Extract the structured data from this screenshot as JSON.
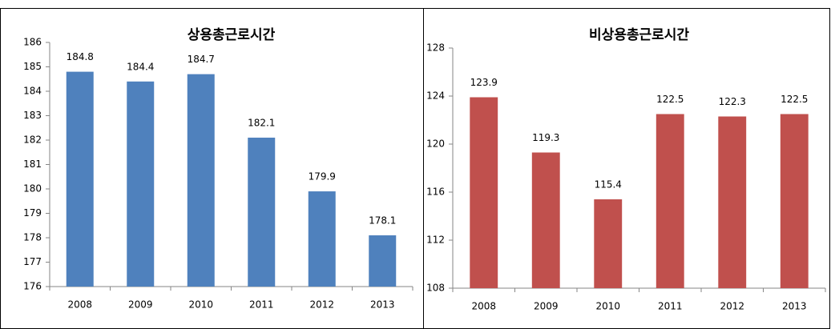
{
  "chart_data": [
    {
      "type": "bar",
      "title": "상용총근로시간",
      "categories": [
        "2008",
        "2009",
        "2010",
        "2011",
        "2012",
        "2013"
      ],
      "values": [
        184.8,
        184.4,
        184.7,
        182.1,
        179.9,
        178.1
      ],
      "color": "#4f81bd",
      "ylim": [
        176,
        186
      ],
      "yticks": [
        176,
        177,
        178,
        179,
        180,
        181,
        182,
        183,
        184,
        185,
        186
      ]
    },
    {
      "type": "bar",
      "title": "비상용총근로시간",
      "categories": [
        "2008",
        "2009",
        "2010",
        "2011",
        "2012",
        "2013"
      ],
      "values": [
        123.9,
        119.3,
        115.4,
        122.5,
        122.3,
        122.5
      ],
      "color": "#c0504d",
      "ylim": [
        108,
        128
      ],
      "yticks": [
        108,
        112,
        116,
        120,
        124,
        128
      ]
    }
  ]
}
